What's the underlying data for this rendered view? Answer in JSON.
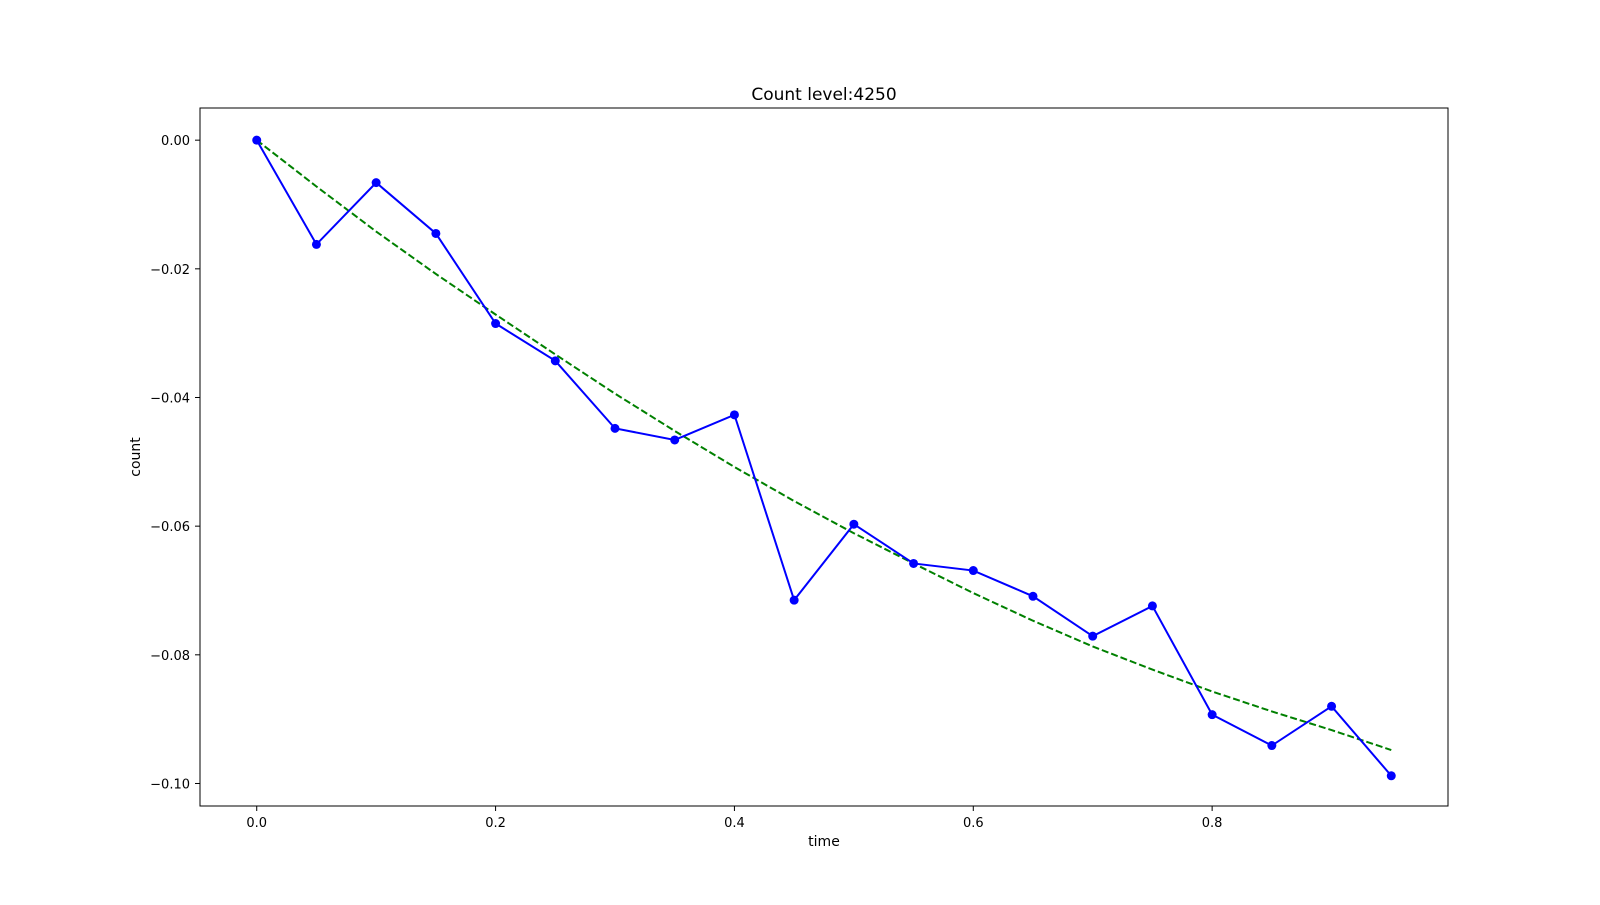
{
  "chart_data": {
    "type": "line",
    "title": "Count level:4250",
    "xlabel": "time",
    "ylabel": "count",
    "xlim": [
      -0.0475,
      0.9975
    ],
    "ylim": [
      -0.1035,
      0.005
    ],
    "xticks": [
      0.0,
      0.2,
      0.4,
      0.6,
      0.8
    ],
    "xtick_labels": [
      "0.0",
      "0.2",
      "0.4",
      "0.6",
      "0.8"
    ],
    "yticks": [
      0.0,
      -0.02,
      -0.04,
      -0.06,
      -0.08,
      -0.1
    ],
    "ytick_labels": [
      "0.00",
      "−0.02",
      "−0.04",
      "−0.06",
      "−0.08",
      "−0.10"
    ],
    "grid": false,
    "series": [
      {
        "style": "solid line with circle markers",
        "color": "#0000ff",
        "x": [
          0.0,
          0.05,
          0.1,
          0.15,
          0.2,
          0.25,
          0.3,
          0.35,
          0.4,
          0.45,
          0.5,
          0.55,
          0.6,
          0.65,
          0.7,
          0.75,
          0.8,
          0.85,
          0.9,
          0.95
        ],
        "y": [
          0.0,
          -0.0162,
          -0.0066,
          -0.0145,
          -0.0285,
          -0.0343,
          -0.0448,
          -0.0466,
          -0.0427,
          -0.0715,
          -0.0597,
          -0.0658,
          -0.0669,
          -0.0709,
          -0.0771,
          -0.0724,
          -0.0893,
          -0.0941,
          -0.088,
          -0.0988
        ]
      },
      {
        "style": "dashed line",
        "color": "#008000",
        "x": [
          0.0,
          0.05,
          0.1,
          0.15,
          0.2,
          0.25,
          0.3,
          0.35,
          0.4,
          0.45,
          0.5,
          0.55,
          0.6,
          0.65,
          0.7,
          0.75,
          0.8,
          0.85,
          0.9,
          0.95
        ],
        "y": [
          0.0,
          -0.0072,
          -0.0142,
          -0.0208,
          -0.0271,
          -0.0333,
          -0.0394,
          -0.0452,
          -0.0508,
          -0.0561,
          -0.0611,
          -0.0658,
          -0.0704,
          -0.0747,
          -0.0787,
          -0.0823,
          -0.0857,
          -0.0888,
          -0.0917,
          -0.0948
        ]
      }
    ]
  }
}
